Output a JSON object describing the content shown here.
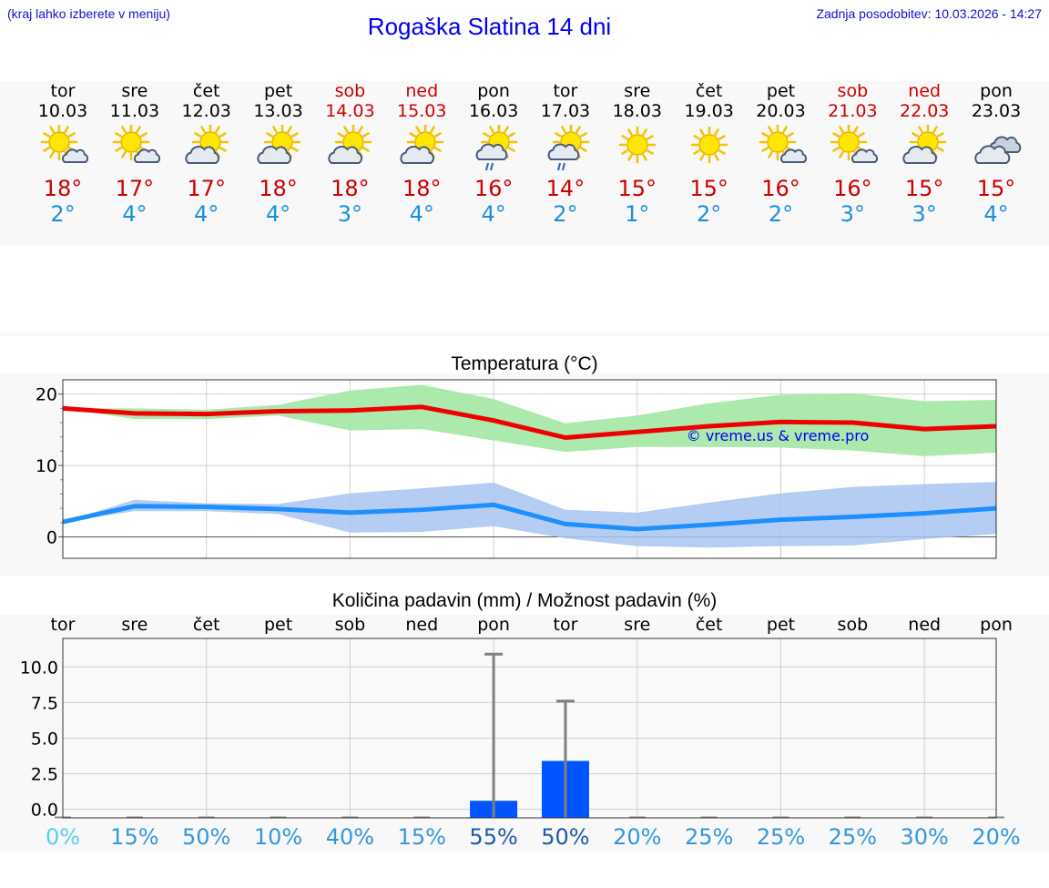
{
  "header": {
    "hint": "(kraj lahko izberete v meniju)",
    "title": "Rogaška Slatina 14 dni",
    "updated": "Zadnja posodobitev: 10.03.2026 - 14:27"
  },
  "days": [
    {
      "name": "tor",
      "date": "10.03",
      "weekend": false,
      "icon": "partly-sunny-icon",
      "tmax": "18°",
      "tmin": "2°"
    },
    {
      "name": "sre",
      "date": "11.03",
      "weekend": false,
      "icon": "partly-sunny-icon",
      "tmax": "17°",
      "tmin": "4°"
    },
    {
      "name": "čet",
      "date": "12.03",
      "weekend": false,
      "icon": "partly-cloudy-icon",
      "tmax": "17°",
      "tmin": "4°"
    },
    {
      "name": "pet",
      "date": "13.03",
      "weekend": false,
      "icon": "partly-cloudy-icon",
      "tmax": "18°",
      "tmin": "4°"
    },
    {
      "name": "sob",
      "date": "14.03",
      "weekend": true,
      "icon": "partly-cloudy-icon",
      "tmax": "18°",
      "tmin": "3°"
    },
    {
      "name": "ned",
      "date": "15.03",
      "weekend": true,
      "icon": "partly-cloudy-icon",
      "tmax": "18°",
      "tmin": "4°"
    },
    {
      "name": "pon",
      "date": "16.03",
      "weekend": false,
      "icon": "rain-showers-icon",
      "tmax": "16°",
      "tmin": "4°"
    },
    {
      "name": "tor",
      "date": "17.03",
      "weekend": false,
      "icon": "rain-showers-icon",
      "tmax": "14°",
      "tmin": "2°"
    },
    {
      "name": "sre",
      "date": "18.03",
      "weekend": false,
      "icon": "sunny-icon",
      "tmax": "15°",
      "tmin": "1°"
    },
    {
      "name": "čet",
      "date": "19.03",
      "weekend": false,
      "icon": "sunny-icon",
      "tmax": "15°",
      "tmin": "2°"
    },
    {
      "name": "pet",
      "date": "20.03",
      "weekend": false,
      "icon": "partly-sunny-icon",
      "tmax": "16°",
      "tmin": "2°"
    },
    {
      "name": "sob",
      "date": "21.03",
      "weekend": true,
      "icon": "partly-sunny-icon",
      "tmax": "16°",
      "tmin": "3°"
    },
    {
      "name": "ned",
      "date": "22.03",
      "weekend": true,
      "icon": "partly-cloudy-icon",
      "tmax": "15°",
      "tmin": "3°"
    },
    {
      "name": "pon",
      "date": "23.03",
      "weekend": false,
      "icon": "cloudy-icon",
      "tmax": "15°",
      "tmin": "4°"
    }
  ],
  "colors": {
    "max_line": "#ee0000",
    "max_band": "#a8e8a8",
    "min_line": "#1e8fff",
    "min_band": "#a8c4f0",
    "bar": "#0055ff",
    "whisker": "#808080"
  },
  "chart_data": [
    {
      "type": "line",
      "title": "Temperatura (°C)",
      "watermark": "© vreme.us & vreme.pro",
      "x": [
        "tor",
        "sre",
        "čet",
        "pet",
        "sob",
        "ned",
        "pon",
        "tor",
        "sre",
        "čet",
        "pet",
        "sob",
        "ned",
        "pon"
      ],
      "ylim": [
        -3,
        22
      ],
      "yticks": [
        0,
        10,
        20
      ],
      "grid": true,
      "series": [
        {
          "name": "max",
          "values": [
            18,
            17.3,
            17.2,
            17.6,
            17.7,
            18.2,
            16.3,
            13.9,
            14.7,
            15.5,
            16.1,
            16.0,
            15.1,
            15.5
          ],
          "band_high": [
            18,
            18.0,
            17.8,
            18.5,
            20.5,
            21.3,
            19.3,
            15.9,
            17.0,
            18.7,
            19.9,
            20.1,
            19.0,
            19.2
          ],
          "band_low": [
            18,
            16.5,
            16.5,
            17.0,
            14.9,
            15.1,
            13.5,
            11.9,
            12.6,
            12.6,
            12.5,
            12.1,
            11.3,
            11.8
          ]
        },
        {
          "name": "min",
          "values": [
            2.1,
            4.3,
            4.2,
            3.9,
            3.4,
            3.8,
            4.5,
            1.8,
            1.1,
            1.7,
            2.4,
            2.8,
            3.3,
            4.0
          ],
          "band_high": [
            2.1,
            5.2,
            4.7,
            4.6,
            6.1,
            6.8,
            7.6,
            3.8,
            3.4,
            4.8,
            6.1,
            7.0,
            7.4,
            7.7
          ],
          "band_low": [
            2.1,
            3.6,
            3.6,
            3.2,
            0.6,
            0.7,
            1.5,
            -0.2,
            -1.3,
            -1.5,
            -1.3,
            -1.2,
            -0.3,
            0.4
          ]
        }
      ]
    },
    {
      "type": "bar",
      "title": "Količina padavin (mm) / Možnost padavin (%)",
      "categories": [
        "tor",
        "sre",
        "čet",
        "pet",
        "sob",
        "ned",
        "pon",
        "tor",
        "sre",
        "čet",
        "pet",
        "sob",
        "ned",
        "pon"
      ],
      "ylim": [
        -0.6,
        12
      ],
      "yticks": [
        "0.0",
        "2.5",
        "5.0",
        "7.5",
        "10.0"
      ],
      "grid": true,
      "values": [
        0,
        0,
        0,
        0,
        0,
        0,
        0.6,
        3.4,
        0,
        0,
        0,
        0,
        0,
        0
      ],
      "error_high": [
        0,
        0,
        0,
        0,
        0,
        0,
        10.9,
        7.6,
        0,
        0,
        0,
        0,
        0,
        0
      ],
      "probability": [
        "0%",
        "15%",
        "50%",
        "10%",
        "40%",
        "15%",
        "55%",
        "50%",
        "20%",
        "25%",
        "25%",
        "25%",
        "30%",
        "20%"
      ],
      "probability_values": [
        0,
        15,
        50,
        10,
        40,
        15,
        55,
        50,
        20,
        25,
        25,
        25,
        30,
        20
      ]
    }
  ]
}
